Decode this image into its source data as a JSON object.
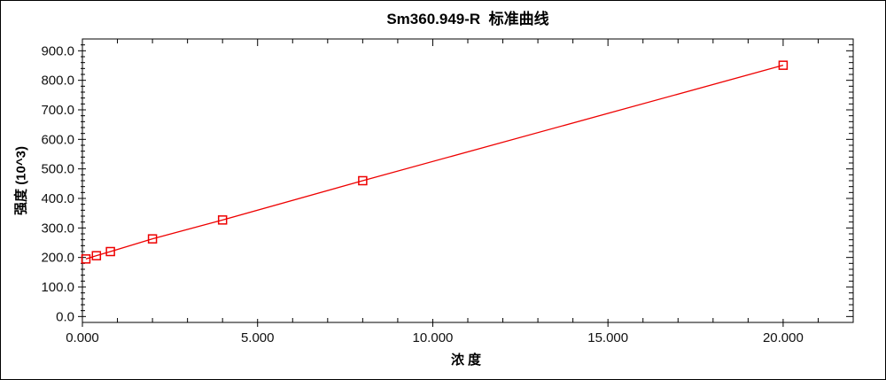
{
  "window": {
    "background_color": "#ffffff",
    "border_color": "#000000"
  },
  "chart_data": {
    "type": "line",
    "title": "Sm360.949-R  标准曲线",
    "xlabel": "浓度",
    "ylabel": "强度 (10^3)",
    "grid": false,
    "legend": "none",
    "plot_border_color": "#000000",
    "x_axis": {
      "min": 0,
      "max": 22,
      "major_ticks": [
        0,
        5,
        10,
        15,
        20
      ],
      "major_tick_labels": [
        "0.000",
        "5.000",
        "10.000",
        "15.000",
        "20.000"
      ],
      "minor_tick_step": 1,
      "minor_range": [
        1,
        21
      ]
    },
    "y_axis": {
      "min": -20,
      "max": 940,
      "major_ticks": [
        0,
        100,
        200,
        300,
        400,
        500,
        600,
        700,
        800,
        900
      ],
      "major_tick_labels": [
        "0.0",
        "100.0",
        "200.0",
        "300.0",
        "400.0",
        "500.0",
        "600.0",
        "700.0",
        "800.0",
        "900.0"
      ],
      "minor_tick_step": 20,
      "minor_range": [
        20,
        920
      ]
    },
    "series": [
      {
        "name": "standard-curve",
        "color": "#ee0000",
        "marker": "open-square",
        "points": [
          {
            "x": 0.1,
            "y": 195
          },
          {
            "x": 0.4,
            "y": 206
          },
          {
            "x": 0.8,
            "y": 220
          },
          {
            "x": 2.0,
            "y": 263
          },
          {
            "x": 4.0,
            "y": 327
          },
          {
            "x": 8.0,
            "y": 460
          },
          {
            "x": 20.0,
            "y": 851
          }
        ]
      }
    ]
  }
}
